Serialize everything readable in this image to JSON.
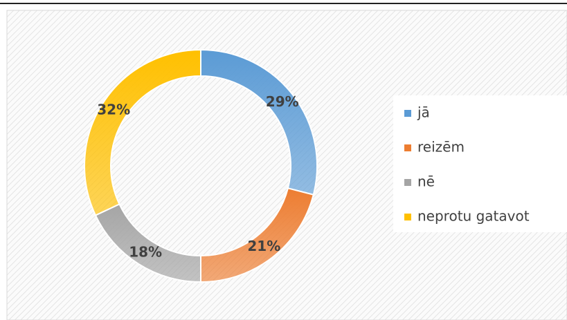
{
  "chart_data": {
    "type": "donut",
    "categories": [
      "jā",
      "reizēm",
      "nē",
      "neprotu gatavot"
    ],
    "values": [
      29,
      21,
      18,
      32
    ],
    "value_labels": [
      "29%",
      "21%",
      "18%",
      "32%"
    ],
    "colors": [
      "#5b9bd5",
      "#ed7d31",
      "#a5a5a5",
      "#ffc000"
    ],
    "legend": "right"
  }
}
